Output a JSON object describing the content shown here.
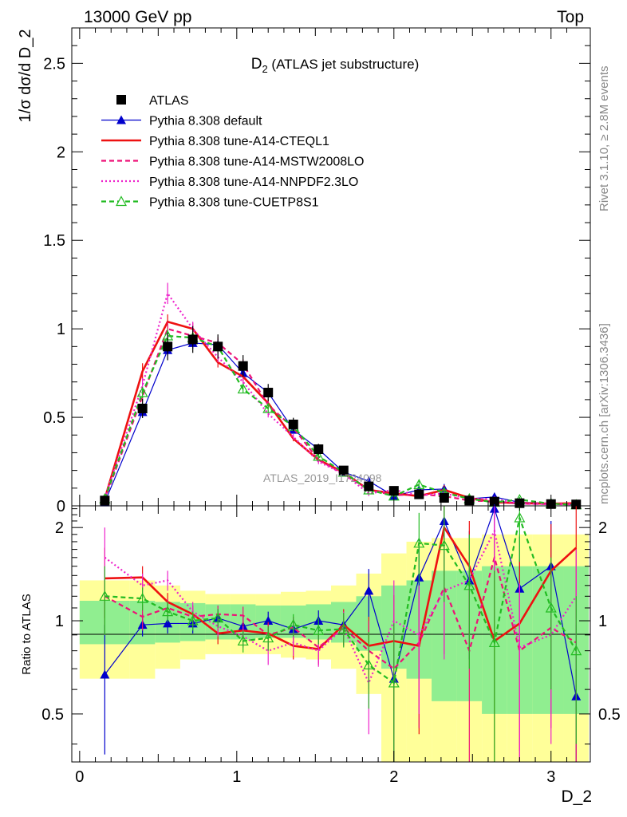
{
  "header": {
    "left": "13000 GeV pp",
    "right": "Top"
  },
  "side_text": {
    "rivet": "Rivet 3.1.10, ≥ 2.8M events",
    "mcplots": "mcplots.cern.ch [arXiv:1306.3436]"
  },
  "main_panel": {
    "title_main": "D",
    "title_sub": "2",
    "title_rest": " (ATLAS jet substructure)",
    "ylabel": "1/σ dσ/d D_2",
    "analysis_tag": "ATLAS_2019_I1724098",
    "yticks": [
      "0",
      "0.5",
      "1",
      "1.5",
      "2",
      "2.5"
    ]
  },
  "ratio_panel": {
    "ylabel": "Ratio to ATLAS",
    "yticks": [
      "0.5",
      "1",
      "2"
    ],
    "xticks": [
      "0",
      "1",
      "2",
      "3"
    ],
    "xlabel": "D_2"
  },
  "legend": [
    {
      "label": "ATLAS",
      "color": "#000000",
      "marker": "square",
      "line": "none"
    },
    {
      "label": "Pythia 8.308 default",
      "color": "#0000cc",
      "marker": "triangle",
      "line": "solid"
    },
    {
      "label": "Pythia 8.308 tune-A14-CTEQL1",
      "color": "#ee1111",
      "marker": "none",
      "line": "solid-thick"
    },
    {
      "label": "Pythia 8.308 tune-A14-MSTW2008LO",
      "color": "#ee1177",
      "marker": "none",
      "line": "dashed"
    },
    {
      "label": "Pythia 8.308 tune-A14-NNPDF2.3LO",
      "color": "#ee22cc",
      "marker": "none",
      "line": "dotted"
    },
    {
      "label": "Pythia 8.308 tune-CUETP8S1",
      "color": "#22bb22",
      "marker": "open-triangle",
      "line": "dashed"
    }
  ],
  "chart_data": {
    "type": "line",
    "xlabel": "D_2",
    "ylabel": "1/σ dσ/d D_2",
    "xlim": [
      -0.05,
      3.25
    ],
    "ylim": [
      0,
      2.7
    ],
    "ratio_ylim": [
      0.35,
      2.35
    ],
    "ratio_scale": "log",
    "x": [
      0.16,
      0.4,
      0.56,
      0.72,
      0.88,
      1.04,
      1.2,
      1.36,
      1.52,
      1.68,
      1.84,
      2.0,
      2.16,
      2.32,
      2.48,
      2.64,
      2.8,
      3.0,
      3.16
    ],
    "bin_edges": [
      0.0,
      0.32,
      0.48,
      0.64,
      0.8,
      0.96,
      1.12,
      1.28,
      1.44,
      1.6,
      1.76,
      1.92,
      2.08,
      2.24,
      2.4,
      2.56,
      2.72,
      2.88,
      3.08,
      3.24
    ],
    "data": {
      "name": "ATLAS",
      "values": [
        0.03,
        0.55,
        0.9,
        0.94,
        0.9,
        0.79,
        0.64,
        0.46,
        0.32,
        0.2,
        0.11,
        0.085,
        0.065,
        0.045,
        0.03,
        0.024,
        0.015,
        0.01,
        0.008
      ],
      "band_inner": [
        0.16,
        0.16,
        0.15,
        0.14,
        0.13,
        0.13,
        0.12,
        0.12,
        0.13,
        0.15,
        0.2,
        0.3,
        0.35,
        0.45,
        0.45,
        0.5,
        0.5,
        0.5,
        0.5
      ],
      "band_outer": [
        0.35,
        0.35,
        0.3,
        0.25,
        0.22,
        0.22,
        0.22,
        0.24,
        0.25,
        0.3,
        0.42,
        0.65,
        0.8,
        0.85,
        0.85,
        0.9,
        0.9,
        0.9,
        0.9
      ]
    },
    "series": [
      {
        "name": "Pythia 8.308 default",
        "values": [
          0.02,
          0.53,
          0.88,
          0.92,
          0.91,
          0.75,
          0.64,
          0.43,
          0.32,
          0.19,
          0.14,
          0.055,
          0.09,
          0.095,
          0.04,
          0.05,
          0.02,
          0.015,
          0.005
        ],
        "ratio": [
          0.67,
          0.97,
          0.98,
          0.98,
          1.02,
          0.96,
          1.0,
          0.94,
          1.0,
          0.97,
          1.25,
          0.65,
          1.38,
          2.1,
          1.35,
          2.3,
          1.27,
          1.5,
          0.57
        ],
        "ratio_err": [
          0.3,
          0.08,
          0.07,
          0.07,
          0.07,
          0.07,
          0.07,
          0.07,
          0.08,
          0.1,
          0.22,
          0.35,
          0.45,
          0.6,
          0.6,
          0.8,
          0.6,
          0.6,
          0.4
        ]
      },
      {
        "name": "Pythia 8.308 tune-A14-CTEQL1",
        "values": [
          0.04,
          0.76,
          1.04,
          1.0,
          0.81,
          0.73,
          0.58,
          0.38,
          0.26,
          0.19,
          0.09,
          0.07,
          0.055,
          0.09,
          0.045,
          0.02,
          0.015,
          0.012,
          0.015
        ],
        "ratio": [
          1.37,
          1.38,
          1.15,
          1.05,
          0.91,
          0.93,
          0.91,
          0.83,
          0.81,
          0.97,
          0.83,
          0.86,
          0.83,
          2.0,
          1.5,
          0.86,
          0.98,
          1.45,
          1.72
        ],
        "ratio_err": [
          0.35,
          0.12,
          0.08,
          0.07,
          0.07,
          0.07,
          0.08,
          0.08,
          0.09,
          0.12,
          0.2,
          0.35,
          0.4,
          0.6,
          0.6,
          0.6,
          0.6,
          0.6,
          0.7
        ]
      },
      {
        "name": "Pythia 8.308 tune-A14-MSTW2008LO",
        "values": [
          0.035,
          0.62,
          1.0,
          0.96,
          0.92,
          0.8,
          0.57,
          0.44,
          0.26,
          0.18,
          0.09,
          0.06,
          0.065,
          0.055,
          0.03,
          0.025,
          0.012,
          0.01,
          0.008
        ],
        "ratio": [
          1.2,
          1.03,
          1.1,
          1.03,
          1.05,
          1.04,
          0.9,
          0.95,
          0.82,
          0.95,
          0.8,
          0.7,
          0.85,
          1.28,
          0.8,
          1.6,
          0.8,
          0.95,
          0.85
        ],
        "ratio_err": [
          0.3,
          0.1,
          0.08,
          0.07,
          0.07,
          0.07,
          0.08,
          0.08,
          0.09,
          0.12,
          0.2,
          0.35,
          0.4,
          0.5,
          0.5,
          0.6,
          0.5,
          0.5,
          0.5
        ]
      },
      {
        "name": "Pythia 8.308 tune-A14-NNPDF2.3LO",
        "values": [
          0.045,
          0.68,
          1.2,
          1.0,
          0.84,
          0.7,
          0.52,
          0.39,
          0.25,
          0.18,
          0.07,
          0.09,
          0.06,
          0.07,
          0.04,
          0.04,
          0.012,
          0.01,
          0.01
        ],
        "ratio": [
          1.6,
          1.3,
          1.35,
          1.07,
          0.96,
          0.89,
          0.8,
          0.85,
          0.8,
          0.95,
          0.63,
          1.0,
          0.9,
          1.25,
          1.35,
          1.95,
          0.82,
          0.9,
          1.2
        ],
        "ratio_err": [
          0.4,
          0.12,
          0.1,
          0.08,
          0.07,
          0.07,
          0.08,
          0.08,
          0.09,
          0.12,
          0.2,
          0.35,
          0.4,
          0.5,
          0.5,
          0.6,
          0.5,
          0.5,
          0.5
        ]
      },
      {
        "name": "Pythia 8.308 tune-CUETP8S1",
        "values": [
          0.04,
          0.64,
          0.96,
          0.95,
          0.9,
          0.66,
          0.55,
          0.45,
          0.28,
          0.19,
          0.09,
          0.055,
          0.12,
          0.075,
          0.04,
          0.02,
          0.035,
          0.012,
          0.006
        ],
        "ratio": [
          1.2,
          1.18,
          1.07,
          1.0,
          1.02,
          0.86,
          0.88,
          0.97,
          0.93,
          0.94,
          0.72,
          0.63,
          1.78,
          1.75,
          1.3,
          0.85,
          2.15,
          1.1,
          0.8
        ],
        "ratio_err": [
          0.3,
          0.1,
          0.08,
          0.07,
          0.07,
          0.07,
          0.08,
          0.08,
          0.09,
          0.12,
          0.2,
          0.35,
          0.45,
          0.6,
          0.6,
          0.6,
          0.6,
          0.5,
          0.4
        ]
      }
    ]
  }
}
